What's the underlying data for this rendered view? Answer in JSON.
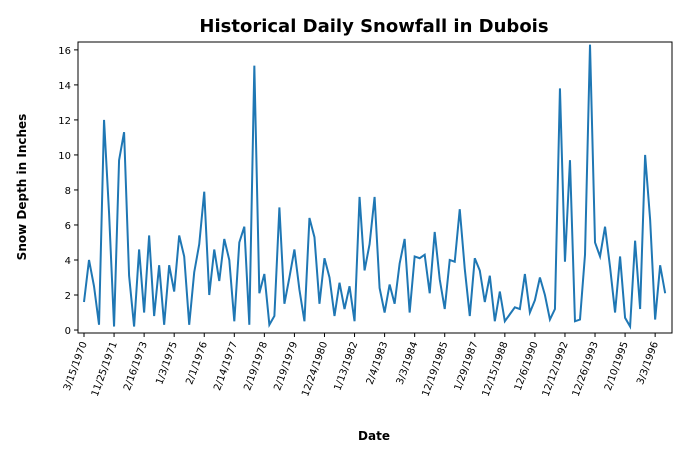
{
  "chart_data": {
    "type": "line",
    "title": "Historical Daily Snowfall in Dubois",
    "x_label": "Date",
    "y_label": "Snow Depth in Inches",
    "categories": [
      "3/15/1970",
      null,
      null,
      null,
      null,
      null,
      "11/25/1971",
      null,
      null,
      null,
      null,
      null,
      "2/16/1973",
      null,
      null,
      null,
      null,
      null,
      "1/3/1975",
      null,
      null,
      null,
      null,
      null,
      "2/1/1976",
      null,
      null,
      null,
      null,
      null,
      "2/14/1977",
      null,
      null,
      null,
      null,
      null,
      "2/19/1978",
      null,
      null,
      null,
      null,
      null,
      "2/19/1979",
      null,
      null,
      null,
      null,
      null,
      "12/24/1980",
      null,
      null,
      null,
      null,
      null,
      "1/13/1982",
      null,
      null,
      null,
      null,
      null,
      "2/4/1983",
      null,
      null,
      null,
      null,
      null,
      "3/3/1984",
      null,
      null,
      null,
      null,
      null,
      "12/19/1985",
      null,
      null,
      null,
      null,
      null,
      "1/29/1987",
      null,
      null,
      null,
      null,
      null,
      "12/15/1988",
      null,
      null,
      null,
      null,
      null,
      "12/6/1990",
      null,
      null,
      null,
      null,
      null,
      "12/12/1992",
      null,
      null,
      null,
      null,
      null,
      "12/26/1993",
      null,
      null,
      null,
      null,
      null,
      "2/10/1995",
      null,
      null,
      null,
      null,
      null,
      "3/3/1996",
      null,
      null
    ],
    "values": [
      1.6,
      4.0,
      2.5,
      0.3,
      12.0,
      6.7,
      0.2,
      9.7,
      11.3,
      3.1,
      0.2,
      4.6,
      1.0,
      5.4,
      0.8,
      3.7,
      0.3,
      3.7,
      2.2,
      5.4,
      4.2,
      0.3,
      3.3,
      4.9,
      7.9,
      2.0,
      4.6,
      2.8,
      5.2,
      4.0,
      0.5,
      5.0,
      5.9,
      0.3,
      15.1,
      2.1,
      3.2,
      0.3,
      0.8,
      7.0,
      1.5,
      3.0,
      4.6,
      2.3,
      0.5,
      6.4,
      5.3,
      1.5,
      4.1,
      3.0,
      0.8,
      2.7,
      1.2,
      2.5,
      0.5,
      7.6,
      3.4,
      4.9,
      7.6,
      2.4,
      1.0,
      2.6,
      1.5,
      3.8,
      5.2,
      1.0,
      4.2,
      4.1,
      4.3,
      2.1,
      5.6,
      2.9,
      1.2,
      4.0,
      3.9,
      6.9,
      3.5,
      0.8,
      4.1,
      3.4,
      1.6,
      3.1,
      0.5,
      2.2,
      0.5,
      0.9,
      1.3,
      1.2,
      3.2,
      1.0,
      1.7,
      3.0,
      2.0,
      0.6,
      1.2,
      13.8,
      3.9,
      9.7,
      0.5,
      0.6,
      4.3,
      16.3,
      5.0,
      4.2,
      5.9,
      3.6,
      1.0,
      4.2,
      0.7,
      0.2,
      5.1,
      1.2,
      10.0,
      6.3,
      0.6,
      3.7,
      2.1
    ],
    "color": "#1f77b4",
    "ylim": [
      -0.17,
      16.45
    ],
    "yticks": [
      0,
      2,
      4,
      6,
      8,
      10,
      12,
      14,
      16
    ]
  }
}
